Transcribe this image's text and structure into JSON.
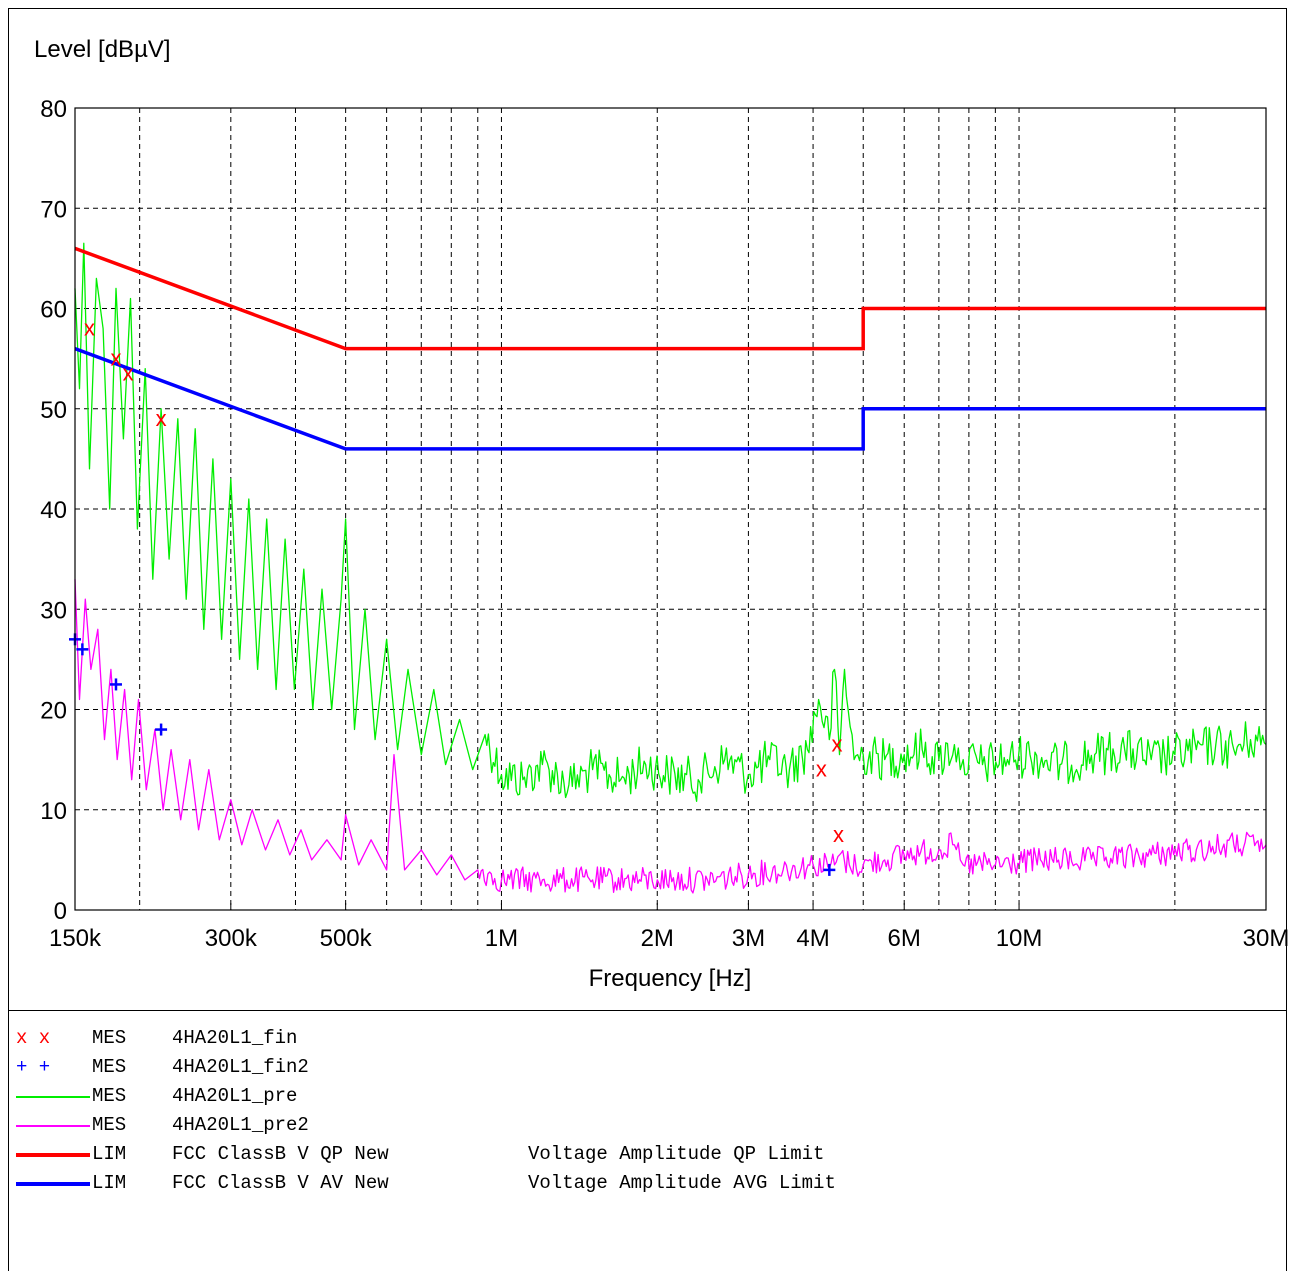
{
  "chart_data": {
    "type": "line",
    "ylabel": "Level [dBµV]",
    "xlabel": "Frequency [Hz]",
    "x_scale": "log",
    "xlim": [
      150000,
      30000000
    ],
    "ylim": [
      0,
      80
    ],
    "grid": true,
    "y_ticks": [
      0,
      10,
      20,
      30,
      40,
      50,
      60,
      70,
      80
    ],
    "x_ticks": [
      {
        "label": "150k",
        "value": 150000
      },
      {
        "label": "300k",
        "value": 300000
      },
      {
        "label": "500k",
        "value": 500000
      },
      {
        "label": "1M",
        "value": 1000000
      },
      {
        "label": "2M",
        "value": 2000000
      },
      {
        "label": "3M",
        "value": 3000000
      },
      {
        "label": "4M",
        "value": 4000000
      },
      {
        "label": "6M",
        "value": 6000000
      },
      {
        "label": "10M",
        "value": 10000000
      },
      {
        "label": "30M",
        "value": 30000000
      }
    ],
    "x_gridlines": [
      200000,
      300000,
      400000,
      500000,
      600000,
      700000,
      800000,
      900000,
      1000000,
      2000000,
      3000000,
      4000000,
      5000000,
      6000000,
      7000000,
      8000000,
      9000000,
      10000000,
      20000000
    ],
    "legend_placement": "bottom",
    "series": [
      {
        "name": "4HA20L1_pre",
        "kind": "MES",
        "style": "line",
        "color": "#00ee00",
        "width": 1.3,
        "x": [
          150000,
          153000,
          156000,
          160000,
          165000,
          170000,
          175000,
          180000,
          186000,
          192000,
          198000,
          205000,
          212000,
          220000,
          228000,
          237000,
          246000,
          256000,
          266000,
          277000,
          288000,
          300000,
          312000,
          325000,
          338000,
          352000,
          367000,
          382000,
          398000,
          415000,
          432000,
          450000,
          470000,
          490000,
          500000,
          520000,
          545000,
          570000,
          600000,
          630000,
          660000,
          700000,
          740000,
          780000,
          830000,
          880000,
          930000,
          1000000,
          1100000,
          1200000,
          1350000,
          1500000,
          1700000,
          1900000,
          2100000,
          2400000,
          2700000,
          3000000,
          3300000,
          3600000,
          3900000,
          4100000,
          4300000,
          4400000,
          4500000,
          4600000,
          4800000,
          5000000,
          5500000,
          6000000,
          6500000,
          7000000,
          7500000,
          7700000,
          7800000,
          8500000,
          9500000,
          10500000,
          12000000,
          14000000,
          16000000,
          18000000,
          20000000,
          22000000,
          24000000,
          26000000,
          28000000,
          30000000
        ],
        "y": [
          62,
          52,
          66.5,
          44,
          63,
          58,
          40,
          62,
          47,
          61,
          38,
          54,
          33,
          50,
          35,
          49,
          31,
          48,
          28,
          45,
          27,
          43,
          25,
          41,
          24,
          39,
          22,
          37,
          22,
          34,
          20,
          32,
          20,
          31,
          39,
          18,
          30,
          17,
          27,
          16,
          24,
          15.5,
          22,
          14.5,
          19,
          14,
          17.5,
          13.5,
          13,
          14.5,
          12.5,
          14,
          13,
          14.5,
          13.5,
          13,
          15,
          13.5,
          15,
          14,
          16,
          21,
          17,
          24,
          15.5,
          24,
          15,
          15.5,
          15,
          15.5,
          16,
          15,
          16.5,
          14,
          15,
          14.5,
          15,
          15.5,
          14.5,
          15.5,
          16,
          15,
          15.5,
          16,
          16.5,
          16,
          17,
          16.5
        ]
      },
      {
        "name": "4HA20L1_pre2",
        "kind": "MES",
        "style": "line",
        "color": "#ff00ff",
        "width": 1.3,
        "x": [
          150000,
          153000,
          157000,
          161000,
          166000,
          171000,
          176000,
          181000,
          187000,
          193000,
          199000,
          206000,
          214000,
          222000,
          230000,
          240000,
          250000,
          260000,
          272000,
          285000,
          300000,
          315000,
          330000,
          350000,
          370000,
          390000,
          410000,
          430000,
          460000,
          490000,
          500000,
          530000,
          560000,
          600000,
          620000,
          650000,
          700000,
          750000,
          800000,
          850000,
          900000,
          1000000,
          1200000,
          1500000,
          2000000,
          2500000,
          3000000,
          3500000,
          4000000,
          4400000,
          4500000,
          4700000,
          5000000,
          5500000,
          6000000,
          7000000,
          7500000,
          7700000,
          7800000,
          9000000,
          11000000,
          14000000,
          18000000,
          22000000,
          26000000,
          30000000
        ],
        "y": [
          33,
          21,
          31,
          24,
          28,
          17,
          24,
          15,
          22,
          13,
          21,
          12,
          18,
          10,
          16,
          9,
          15,
          8,
          14,
          7,
          11,
          6.5,
          10,
          6,
          9,
          5.5,
          8,
          5,
          7,
          5,
          9.5,
          4.5,
          7,
          4,
          15.5,
          4,
          6,
          3.5,
          5.5,
          3,
          4,
          3,
          3,
          3,
          3,
          3,
          3.5,
          4,
          4.5,
          4.5,
          5.5,
          4.5,
          4.5,
          5,
          5.5,
          6,
          6.5,
          5,
          4.5,
          4.5,
          5,
          5,
          5.5,
          6,
          6.5,
          6.5
        ]
      },
      {
        "name": "FCC ClassB V QP New",
        "kind": "LIM",
        "desc": "Voltage Amplitude QP Limit",
        "style": "line",
        "color": "#ff0000",
        "width": 3.5,
        "x": [
          150000,
          500000,
          5000000,
          5000000,
          30000000
        ],
        "y": [
          66,
          56,
          56,
          60,
          60
        ]
      },
      {
        "name": "FCC ClassB V AV New",
        "kind": "LIM",
        "desc": "Voltage Amplitude AVG Limit",
        "style": "line",
        "color": "#0000ff",
        "width": 3.5,
        "x": [
          150000,
          500000,
          5000000,
          5000000,
          30000000
        ],
        "y": [
          56,
          46,
          46,
          50,
          50
        ]
      },
      {
        "name": "4HA20L1_fin",
        "kind": "MES",
        "style": "markers",
        "marker": "x",
        "color": "#ff0000",
        "x": [
          160000,
          180000,
          190000,
          220000,
          4150000,
          4450000,
          4480000
        ],
        "y": [
          58,
          55,
          53.5,
          49,
          14,
          16.5,
          7.5
        ]
      },
      {
        "name": "4HA20L1_fin2",
        "kind": "MES",
        "style": "markers",
        "marker": "+",
        "color": "#0000ff",
        "x": [
          150000,
          155000,
          180000,
          220000,
          4300000
        ],
        "y": [
          27,
          26,
          22.5,
          18,
          4
        ]
      }
    ]
  },
  "legend": [
    {
      "symbol": "x x",
      "symbol_color": "#ff0000",
      "type": "MES",
      "name": "4HA20L1_fin",
      "desc": ""
    },
    {
      "symbol": "+ +",
      "symbol_color": "#0000ff",
      "type": "MES",
      "name": "4HA20L1_fin2",
      "desc": ""
    },
    {
      "symbol": "line",
      "symbol_color": "#00ee00",
      "type": "MES",
      "name": "4HA20L1_pre",
      "desc": ""
    },
    {
      "symbol": "line",
      "symbol_color": "#ff00ff",
      "type": "MES",
      "name": "4HA20L1_pre2",
      "desc": ""
    },
    {
      "symbol": "thick-line",
      "symbol_color": "#ff0000",
      "type": "LIM",
      "name": "FCC ClassB V QP New",
      "desc": "Voltage Amplitude QP Limit"
    },
    {
      "symbol": "thick-line",
      "symbol_color": "#0000ff",
      "type": "LIM",
      "name": "FCC ClassB V AV New",
      "desc": "Voltage Amplitude AVG Limit"
    }
  ]
}
